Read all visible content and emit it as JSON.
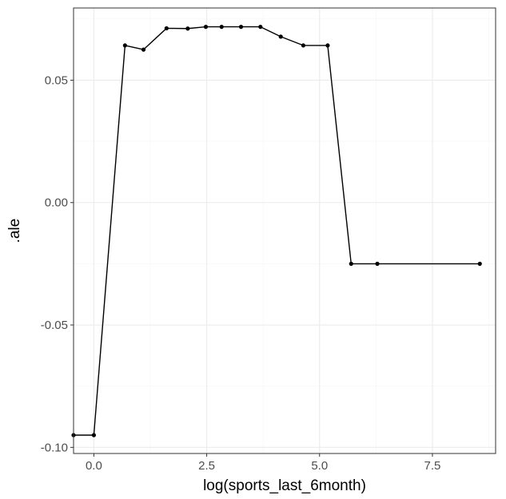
{
  "chart_data": {
    "type": "line",
    "title": "",
    "xlabel": "log(sports_last_6month)",
    "ylabel": ".ale",
    "xlim": [
      -0.45,
      8.9
    ],
    "ylim": [
      -0.1025,
      0.0795
    ],
    "x_ticks": [
      0.0,
      2.5,
      5.0,
      7.5
    ],
    "x_tick_labels": [
      "0.0",
      "2.5",
      "5.0",
      "7.5"
    ],
    "y_ticks": [
      -0.1,
      -0.05,
      0.0,
      0.05
    ],
    "y_tick_labels": [
      "-0.10",
      "-0.05",
      "0.00",
      "0.05"
    ],
    "grid": true,
    "legend": "none",
    "series": [
      {
        "x": [
          -0.45,
          0.0,
          0.69,
          1.1,
          1.61,
          2.08,
          2.48,
          2.83,
          3.26,
          3.69,
          4.14,
          4.64,
          5.18,
          5.7,
          6.28,
          8.55
        ],
        "y": [
          -0.095,
          -0.095,
          0.0642,
          0.0625,
          0.0712,
          0.0711,
          0.0718,
          0.0718,
          0.0718,
          0.0718,
          0.0678,
          0.0642,
          0.0642,
          -0.025,
          -0.025,
          -0.025
        ],
        "color": "#000000"
      }
    ],
    "colors": {
      "panel_border": "#333333",
      "grid_major": "#ebebeb",
      "grid_minor": "#f5f5f5",
      "tick_label": "#4d4d4d",
      "axis_title": "#000000",
      "line": "#000000"
    }
  }
}
